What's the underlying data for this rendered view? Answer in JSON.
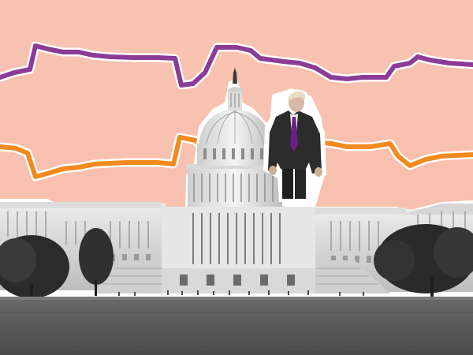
{
  "image": {
    "description_colors": {
      "background": "#f9c4b2",
      "purple_line": "#8c3c96",
      "orange_line": "#f28a1e",
      "outline": "#ffffff",
      "lawn": "#5a5a5a"
    }
  }
}
